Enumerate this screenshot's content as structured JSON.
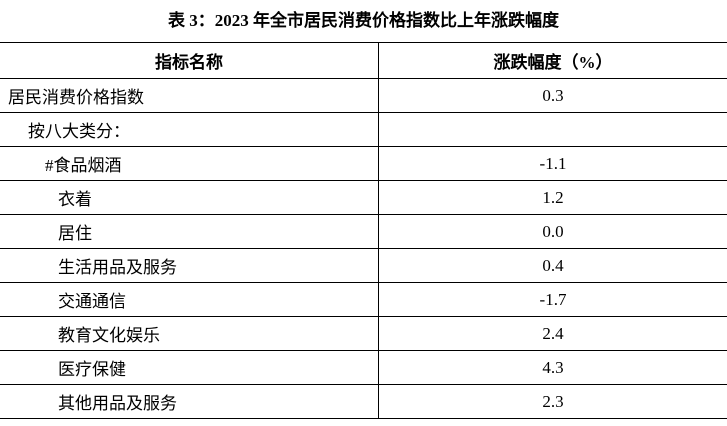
{
  "title": "表 3：2023 年全市居民消费价格指数比上年涨跌幅度",
  "table": {
    "header": [
      "指标名称",
      "涨跌幅度（%）"
    ],
    "rows": [
      [
        "居民消费价格指数",
        "0.3"
      ],
      [
        "按八大类分："
      ],
      [
        "#食品烟酒",
        "-1.1"
      ],
      [
        "衣着",
        "1.2"
      ],
      [
        "居住",
        "0.0"
      ],
      [
        "生活用品及服务",
        "0.4"
      ],
      [
        "交通通信",
        "-1.7"
      ],
      [
        "教育文化娱乐",
        "2.4"
      ],
      [
        "医疗保健",
        "4.3"
      ],
      [
        "其他用品及服务",
        "2.3"
      ]
    ]
  }
}
